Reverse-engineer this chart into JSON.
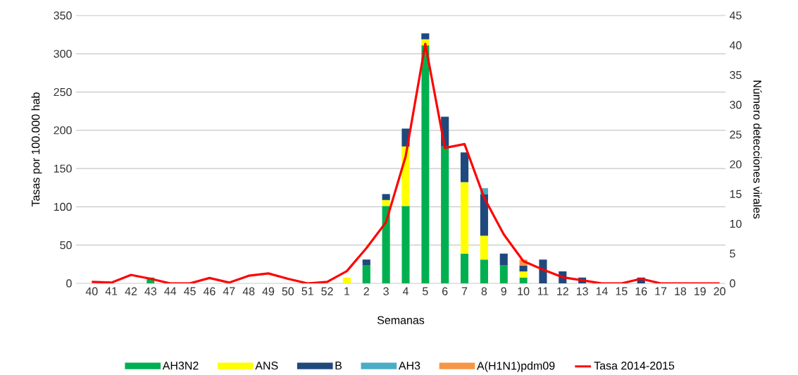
{
  "chart_data": {
    "type": "bar",
    "stacked": true,
    "xlabel": "Semanas",
    "ylabel": "Tasas por 100.000 hab",
    "y2label": "Número detecciones virales",
    "grid": "y",
    "legend": "bottom",
    "categories": [
      "40",
      "41",
      "42",
      "43",
      "44",
      "45",
      "46",
      "47",
      "48",
      "49",
      "50",
      "51",
      "52",
      "1",
      "2",
      "3",
      "4",
      "5",
      "6",
      "7",
      "8",
      "9",
      "10",
      "11",
      "12",
      "13",
      "14",
      "15",
      "16",
      "17",
      "18",
      "19",
      "20"
    ],
    "ylim": [
      0,
      350
    ],
    "yticks": [
      0,
      50,
      100,
      150,
      200,
      250,
      300,
      350
    ],
    "y2lim": [
      0,
      45
    ],
    "y2ticks": [
      0,
      5,
      10,
      15,
      20,
      25,
      30,
      35,
      40,
      45
    ],
    "series": [
      {
        "name": "AH3N2",
        "color": "#00b050",
        "axis": "y2",
        "values": [
          0,
          0,
          0,
          1,
          0,
          0,
          0,
          0,
          0,
          0,
          0,
          0,
          0,
          0,
          3,
          13,
          13,
          40,
          23,
          5,
          4,
          3,
          1,
          0,
          0,
          0,
          0,
          0,
          0,
          0,
          0,
          0,
          0
        ]
      },
      {
        "name": "ANS",
        "color": "#ffff00",
        "axis": "y2",
        "values": [
          0,
          0,
          0,
          0,
          0,
          0,
          0,
          0,
          0,
          0,
          0,
          0,
          0,
          1,
          0,
          1,
          10,
          1,
          0,
          12,
          4,
          0,
          1,
          0,
          0,
          0,
          0,
          0,
          0,
          0,
          0,
          0,
          0
        ]
      },
      {
        "name": "B",
        "color": "#1f497d",
        "axis": "y2",
        "values": [
          0,
          0,
          0,
          0,
          0,
          0,
          0,
          0,
          0,
          0,
          0,
          0,
          0,
          0,
          1,
          1,
          3,
          1,
          5,
          5,
          7,
          2,
          1,
          4,
          2,
          1,
          0,
          0,
          1,
          0,
          0,
          0,
          0
        ]
      },
      {
        "name": "AH3",
        "color": "#4bacc6",
        "axis": "y2",
        "values": [
          0,
          0,
          0,
          0,
          0,
          0,
          0,
          0,
          0,
          0,
          0,
          0,
          0,
          0,
          0,
          0,
          0,
          0,
          0,
          0,
          1,
          0,
          0,
          0,
          0,
          0,
          0,
          0,
          0,
          0,
          0,
          0,
          0
        ]
      },
      {
        "name": "A(H1N1)pdm09",
        "color": "#f79646",
        "axis": "y2",
        "values": [
          0,
          0,
          0,
          0,
          0,
          0,
          0,
          0,
          0,
          0,
          0,
          0,
          0,
          0,
          0,
          0,
          0,
          0,
          0,
          0,
          0,
          0,
          1,
          0,
          0,
          0,
          0,
          0,
          0,
          0,
          0,
          0,
          0
        ]
      },
      {
        "name": "Tasa 2014-2015",
        "type": "line",
        "color": "#ff0000",
        "values": [
          2,
          1,
          11,
          6,
          0,
          0,
          7,
          1,
          10,
          13,
          6,
          0,
          2,
          16,
          46,
          80,
          166,
          313,
          177,
          182,
          112,
          64,
          29,
          18,
          8,
          4,
          0,
          0,
          6,
          0,
          0,
          0,
          0
        ]
      }
    ]
  }
}
